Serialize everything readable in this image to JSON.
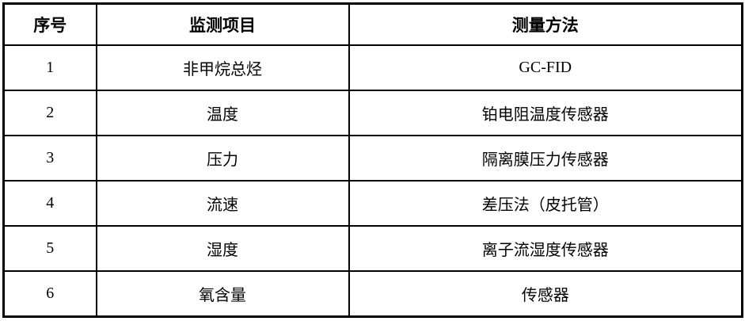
{
  "table": {
    "headers": {
      "no": "序号",
      "item": "监测项目",
      "method": "测量方法"
    },
    "rows": [
      {
        "no": "1",
        "item": "非甲烷总烃",
        "method": "GC-FID"
      },
      {
        "no": "2",
        "item": "温度",
        "method": "铂电阻温度传感器"
      },
      {
        "no": "3",
        "item": "压力",
        "method": "隔离膜压力传感器"
      },
      {
        "no": "4",
        "item": "流速",
        "method": "差压法（皮托管）"
      },
      {
        "no": "5",
        "item": "湿度",
        "method": "离子流湿度传感器"
      },
      {
        "no": "6",
        "item": "氧含量",
        "method": "传感器"
      }
    ],
    "colors": {
      "border": "#000000",
      "text": "#000000",
      "background": "#ffffff"
    }
  }
}
